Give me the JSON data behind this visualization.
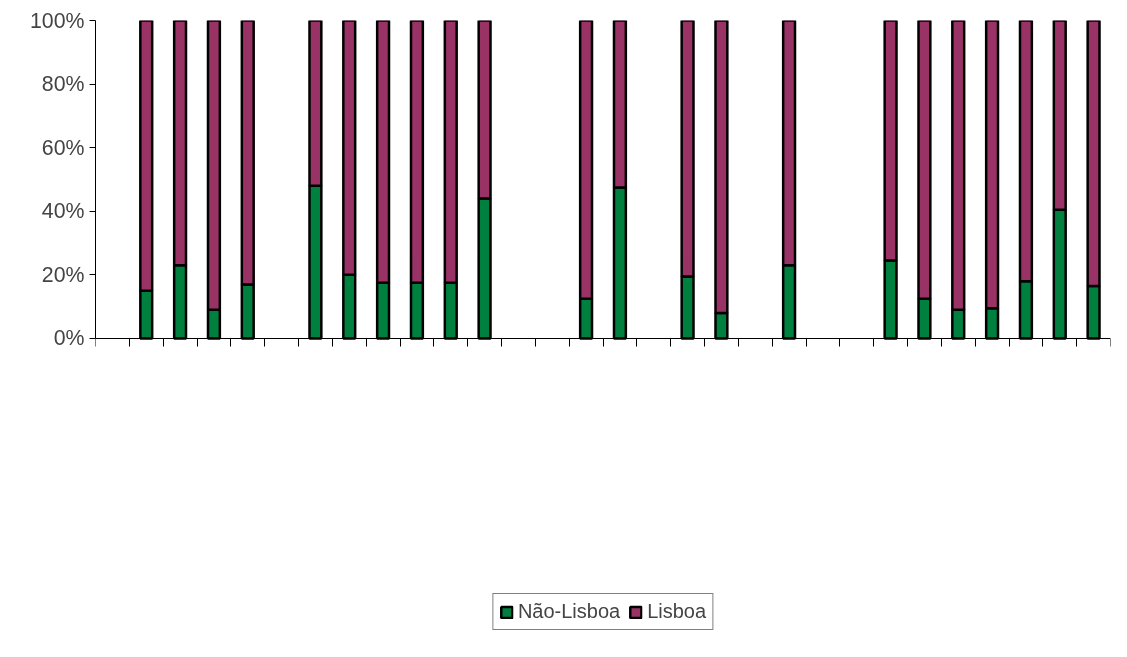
{
  "chart_data": {
    "type": "bar",
    "stacked": true,
    "categories": [
      null,
      null,
      null,
      null,
      null,
      null,
      null,
      null,
      null,
      null,
      null,
      null,
      null,
      null,
      null,
      null,
      null,
      null,
      null,
      null,
      null,
      null,
      null,
      null,
      null,
      null,
      null,
      null,
      null,
      null
    ],
    "series": [
      {
        "name": "Não-Lisboa",
        "color": "#00803f",
        "values": [
          null,
          15,
          23,
          9,
          17,
          null,
          48,
          20,
          17.5,
          17.5,
          17.5,
          44,
          null,
          null,
          12.5,
          47.5,
          null,
          19.5,
          8,
          null,
          23,
          null,
          null,
          24.5,
          12.5,
          9,
          9.5,
          18,
          40.5,
          16.5
        ]
      },
      {
        "name": "Lisboa",
        "color": "#993366",
        "values": [
          null,
          85,
          77,
          91,
          83,
          null,
          52,
          80,
          82.5,
          82.5,
          82.5,
          56,
          null,
          null,
          87.5,
          52.5,
          null,
          80.5,
          92,
          null,
          77,
          null,
          null,
          75.5,
          87.5,
          91,
          90.5,
          82,
          59.5,
          83.5
        ]
      }
    ],
    "ylim": [
      0,
      100
    ],
    "yticks": [
      {
        "value": 0,
        "label": "0%"
      },
      {
        "value": 20,
        "label": "20%"
      },
      {
        "value": 40,
        "label": "40%"
      },
      {
        "value": 60,
        "label": "60%"
      },
      {
        "value": 80,
        "label": "80%"
      },
      {
        "value": 100,
        "label": "100%"
      }
    ],
    "grid": false,
    "legend": "bottom"
  }
}
